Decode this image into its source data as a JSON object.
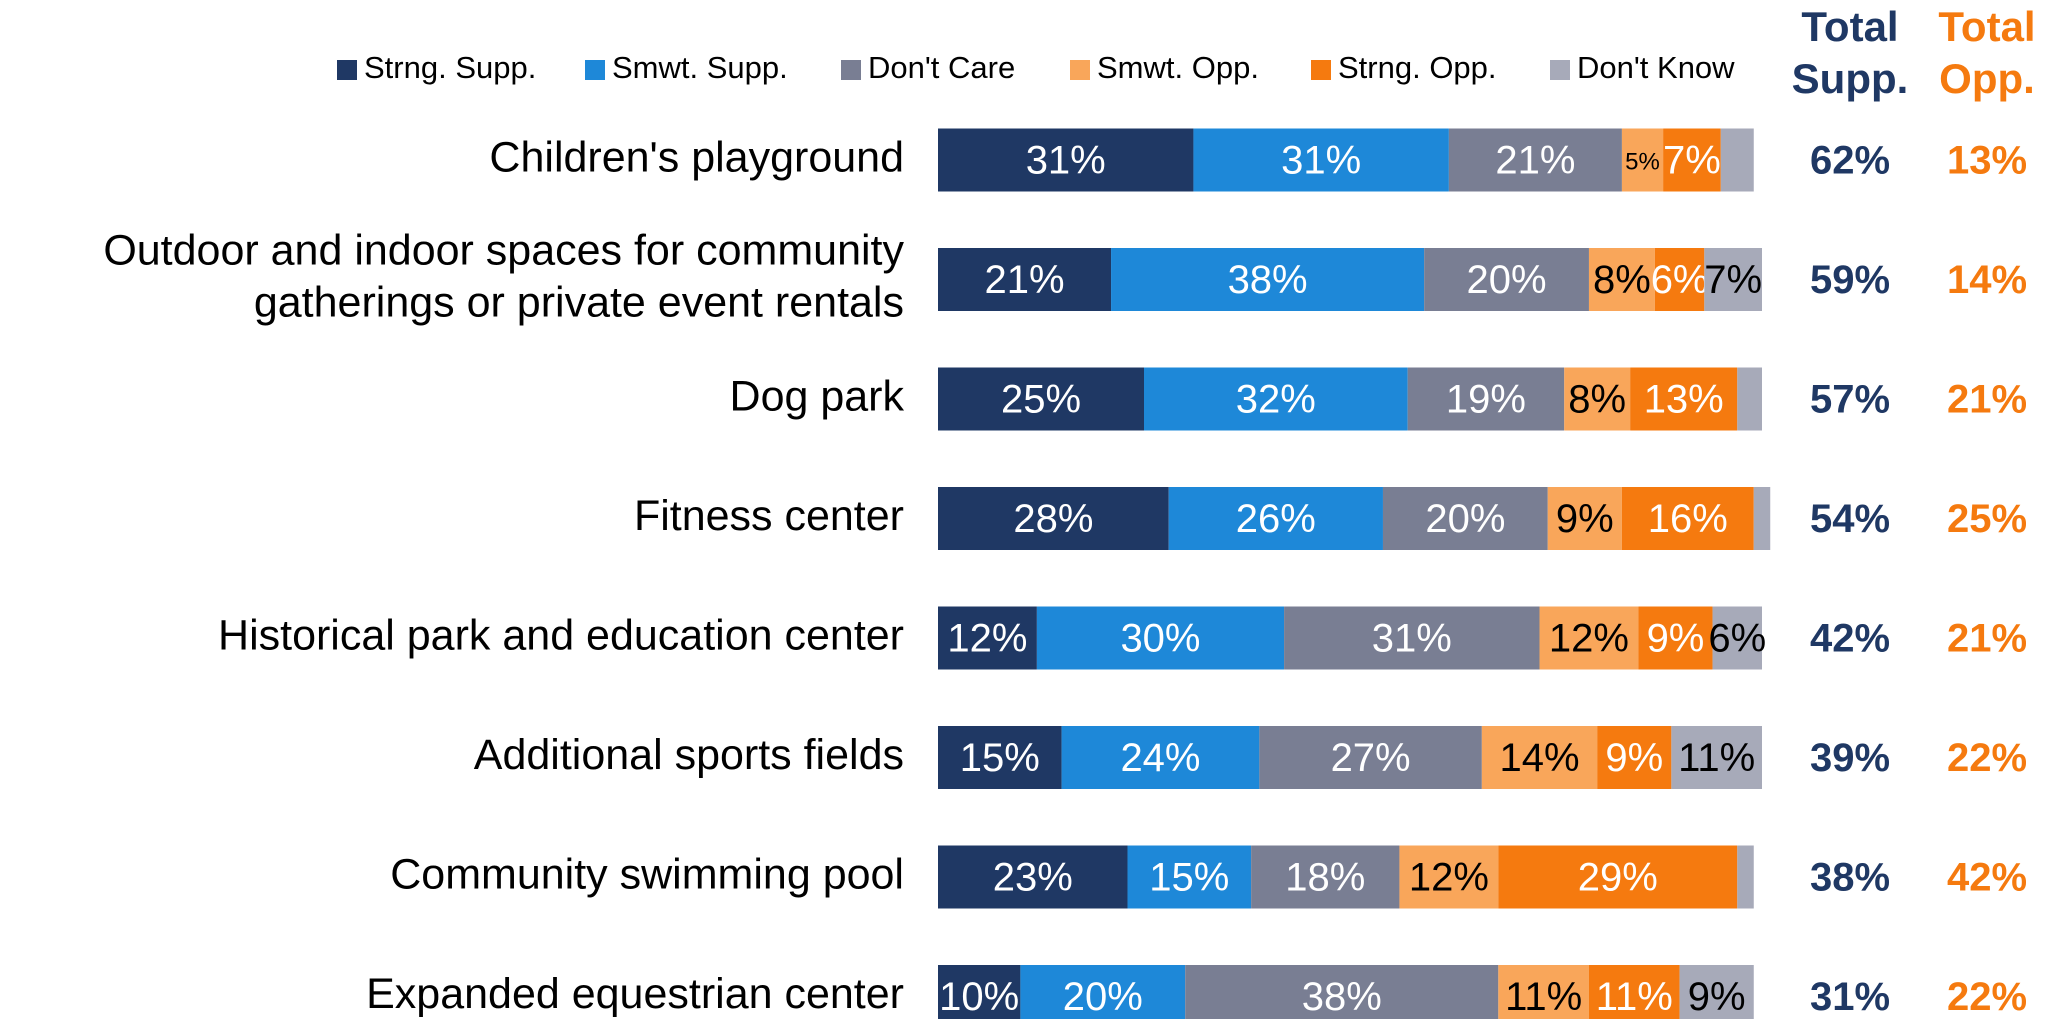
{
  "chart_data": {
    "type": "stacked-barh",
    "categories": [
      "Children's playground",
      "Outdoor and indoor spaces for community\ngatherings or private event rentals",
      "Dog park",
      "Fitness center",
      "Historical park and education center",
      "Additional sports fields",
      "Community swimming pool",
      "Expanded equestrian center"
    ],
    "xlim": [
      0,
      100
    ],
    "legend": "top",
    "series": [
      {
        "name": "Strng. Supp.",
        "color": "#1f3864",
        "label_color": "#ffffff",
        "values": [
          31,
          21,
          25,
          28,
          12,
          15,
          23,
          10
        ],
        "value_labels": [
          "31%",
          "21%",
          "25%",
          "28%",
          "12%",
          "15%",
          "23%",
          "10%"
        ]
      },
      {
        "name": "Smwt. Supp.",
        "color": "#1e88d8",
        "label_color": "#ffffff",
        "values": [
          31,
          38,
          32,
          26,
          30,
          24,
          15,
          20
        ],
        "value_labels": [
          "31%",
          "38%",
          "32%",
          "26%",
          "30%",
          "24%",
          "15%",
          "20%"
        ]
      },
      {
        "name": "Don't Care",
        "color": "#797e93",
        "label_color": "#ffffff",
        "values": [
          21,
          20,
          19,
          20,
          31,
          27,
          18,
          38
        ],
        "value_labels": [
          "21%",
          "20%",
          "19%",
          "20%",
          "31%",
          "27%",
          "18%",
          "38%"
        ]
      },
      {
        "name": "Smwt. Opp.",
        "color": "#f9a65a",
        "label_color": "#000000",
        "values": [
          5,
          8,
          8,
          9,
          12,
          14,
          12,
          11
        ],
        "value_labels": [
          "5%",
          "8%",
          "8%",
          "9%",
          "12%",
          "14%",
          "12%",
          "11%"
        ]
      },
      {
        "name": "Strng. Opp.",
        "color": "#f57a0f",
        "label_color": "#ffffff",
        "values": [
          7,
          6,
          13,
          16,
          9,
          9,
          29,
          11
        ],
        "value_labels": [
          "7%",
          "6%",
          "13%",
          "16%",
          "9%",
          "9%",
          "29%",
          "11%"
        ]
      },
      {
        "name": "Don't Know",
        "color": "#a7aab9",
        "label_color": "#000000",
        "values": [
          4,
          7,
          3,
          2,
          6,
          11,
          2,
          9
        ],
        "value_labels": [
          null,
          "7%",
          null,
          null,
          "6%",
          "11%",
          null,
          "9%"
        ]
      }
    ],
    "totals": [
      {
        "name": "Total\nSupp.",
        "color": "#1f3864",
        "values": [
          62,
          59,
          57,
          54,
          42,
          39,
          38,
          31
        ],
        "value_labels": [
          "62%",
          "59%",
          "57%",
          "54%",
          "42%",
          "39%",
          "38%",
          "31%"
        ]
      },
      {
        "name": "Total\nOpp.",
        "color": "#f57a0f",
        "values": [
          13,
          14,
          21,
          25,
          21,
          22,
          42,
          22
        ],
        "value_labels": [
          "13%",
          "14%",
          "21%",
          "25%",
          "21%",
          "22%",
          "42%",
          "22%"
        ]
      }
    ]
  }
}
